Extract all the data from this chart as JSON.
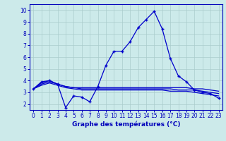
{
  "title": "Graphe des températures (°C)",
  "x_values": [
    0,
    1,
    2,
    3,
    4,
    5,
    6,
    7,
    8,
    9,
    10,
    11,
    12,
    13,
    14,
    15,
    16,
    17,
    18,
    19,
    20,
    21,
    22,
    23
  ],
  "series": [
    [
      3.3,
      3.9,
      4.0,
      3.7,
      1.7,
      2.7,
      2.6,
      2.2,
      3.5,
      5.3,
      6.5,
      6.5,
      7.3,
      8.5,
      9.2,
      9.9,
      8.4,
      5.9,
      4.4,
      3.9,
      3.2,
      3.0,
      2.9,
      2.5
    ],
    [
      3.3,
      3.8,
      4.0,
      3.7,
      3.5,
      3.4,
      3.4,
      3.4,
      3.4,
      3.4,
      3.4,
      3.4,
      3.4,
      3.4,
      3.4,
      3.4,
      3.4,
      3.4,
      3.4,
      3.4,
      3.3,
      3.3,
      3.2,
      3.1
    ],
    [
      3.3,
      3.7,
      3.9,
      3.7,
      3.5,
      3.4,
      3.3,
      3.3,
      3.3,
      3.3,
      3.3,
      3.3,
      3.3,
      3.3,
      3.3,
      3.3,
      3.3,
      3.3,
      3.2,
      3.2,
      3.2,
      3.1,
      3.0,
      2.9
    ],
    [
      3.3,
      3.6,
      3.8,
      3.6,
      3.4,
      3.3,
      3.2,
      3.2,
      3.2,
      3.2,
      3.2,
      3.2,
      3.2,
      3.2,
      3.2,
      3.2,
      3.2,
      3.1,
      3.1,
      3.1,
      3.0,
      2.9,
      2.8,
      2.7
    ]
  ],
  "line_color": "#0000cc",
  "bg_color": "#cceaea",
  "grid_color": "#aacccc",
  "axis_color": "#0000bb",
  "ylim": [
    1.5,
    10.5
  ],
  "xlim": [
    -0.5,
    23.5
  ],
  "yticks": [
    2,
    3,
    4,
    5,
    6,
    7,
    8,
    9,
    10
  ],
  "xticks": [
    0,
    1,
    2,
    3,
    4,
    5,
    6,
    7,
    8,
    9,
    10,
    11,
    12,
    13,
    14,
    15,
    16,
    17,
    18,
    19,
    20,
    21,
    22,
    23
  ],
  "marker": "+",
  "markersize": 3.5,
  "linewidth": 0.9,
  "tick_fontsize": 5.5,
  "label_fontsize": 6.5
}
